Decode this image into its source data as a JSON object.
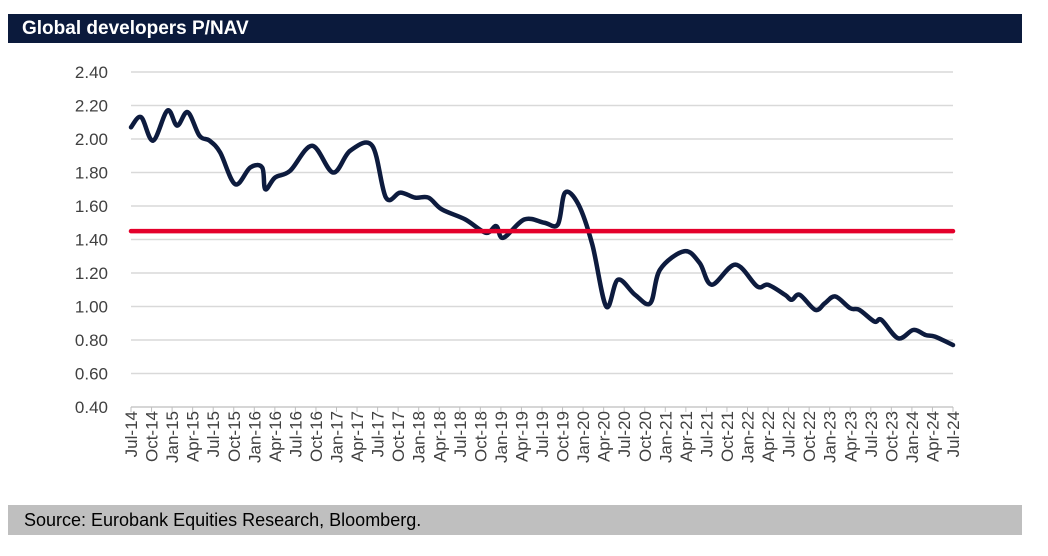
{
  "header": {
    "title": "Global developers P/NAV"
  },
  "footer": {
    "source": "Source: Eurobank Equities Research, Bloomberg."
  },
  "chart_data": {
    "type": "line",
    "title": "Global developers P/NAV",
    "xlabel": "",
    "ylabel": "",
    "ylim": [
      0.4,
      2.4
    ],
    "yticks": [
      "0.40",
      "0.60",
      "0.80",
      "1.00",
      "1.20",
      "1.40",
      "1.60",
      "1.80",
      "2.00",
      "2.20",
      "2.40"
    ],
    "xlim": [
      "2014-07-01",
      "2024-07-01"
    ],
    "xticks": [
      "Jul-14",
      "Oct-14",
      "Jan-15",
      "Apr-15",
      "Jul-15",
      "Oct-15",
      "Jan-16",
      "Apr-16",
      "Jul-16",
      "Oct-16",
      "Jan-17",
      "Apr-17",
      "Jul-17",
      "Oct-17",
      "Jan-18",
      "Apr-18",
      "Jul-18",
      "Oct-18",
      "Jan-19",
      "Apr-19",
      "Jul-19",
      "Oct-19",
      "Jan-20",
      "Apr-20",
      "Jul-20",
      "Oct-20",
      "Jan-21",
      "Apr-21",
      "Jul-21",
      "Oct-21",
      "Jan-22",
      "Apr-22",
      "Jul-22",
      "Oct-22",
      "Jan-23",
      "Apr-23",
      "Jul-23",
      "Oct-23",
      "Jan-24",
      "Apr-24",
      "Jul-24"
    ],
    "grid": "horizontal",
    "colors": {
      "series": "#0d1b3e",
      "reference": "#e4002b",
      "grid": "#d9d9d9"
    },
    "series": [
      {
        "x": [
          "2014-07-01",
          "2014-08-15",
          "2014-10-07",
          "2014-12-10",
          "2015-01-22",
          "2015-03-10",
          "2015-05-01",
          "2015-06-15",
          "2015-08-01",
          "2015-10-07",
          "2015-12-13",
          "2016-02-04",
          "2016-02-18",
          "2016-04-01",
          "2016-06-07",
          "2016-09-13",
          "2016-12-15",
          "2017-03-01",
          "2017-06-07",
          "2017-08-07",
          "2017-10-10",
          "2017-12-15",
          "2018-02-12",
          "2018-04-12",
          "2018-07-25",
          "2018-10-25",
          "2018-12-10",
          "2019-01-10",
          "2019-04-15",
          "2019-07-12",
          "2019-09-10",
          "2019-10-12",
          "2019-12-10",
          "2020-02-10",
          "2020-04-12",
          "2020-06-03",
          "2020-08-18",
          "2020-10-25",
          "2020-12-07",
          "2021-03-25",
          "2021-06-01",
          "2021-07-25",
          "2021-11-07",
          "2022-02-12",
          "2022-04-01",
          "2022-06-15",
          "2022-07-15",
          "2022-08-20",
          "2022-10-28",
          "2022-12-10",
          "2023-01-25",
          "2023-04-01",
          "2023-05-12",
          "2023-07-18",
          "2023-08-18",
          "2023-11-01",
          "2024-01-07",
          "2024-03-01",
          "2024-04-12",
          "2024-07-01"
        ],
        "y": [
          2.07,
          2.13,
          1.99,
          2.17,
          2.08,
          2.16,
          2.02,
          1.99,
          1.92,
          1.73,
          1.83,
          1.83,
          1.7,
          1.77,
          1.81,
          1.96,
          1.8,
          1.93,
          1.96,
          1.65,
          1.68,
          1.65,
          1.65,
          1.58,
          1.52,
          1.44,
          1.48,
          1.41,
          1.52,
          1.5,
          1.49,
          1.68,
          1.61,
          1.37,
          1.0,
          1.16,
          1.07,
          1.02,
          1.22,
          1.33,
          1.26,
          1.13,
          1.25,
          1.12,
          1.13,
          1.07,
          1.04,
          1.07,
          0.98,
          1.02,
          1.06,
          0.99,
          0.98,
          0.91,
          0.92,
          0.81,
          0.86,
          0.83,
          0.82,
          0.77
        ]
      }
    ],
    "reference_line": {
      "y": 1.45
    }
  }
}
